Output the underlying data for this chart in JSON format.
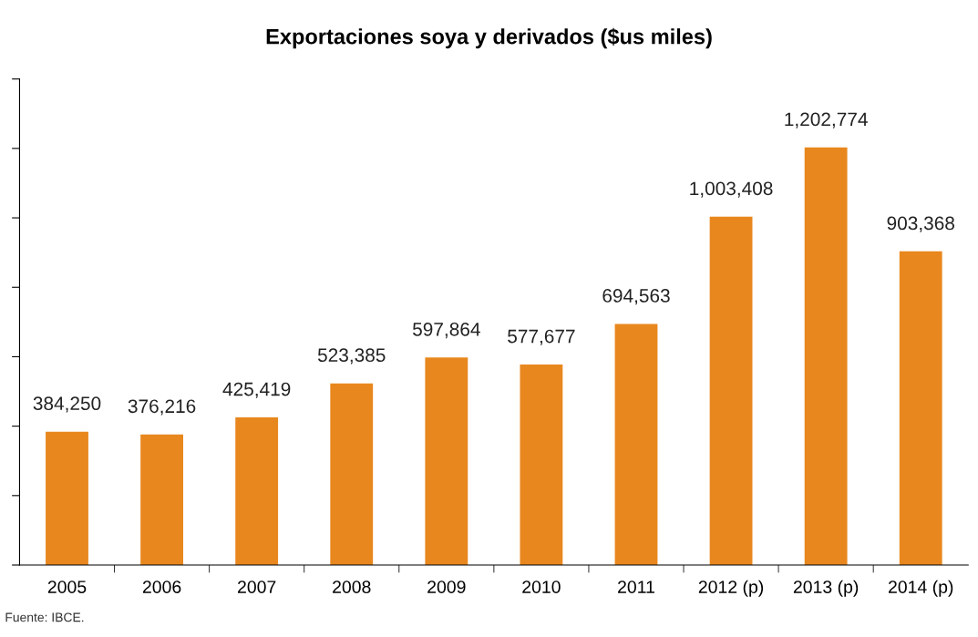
{
  "chart_data": {
    "type": "bar",
    "title": "Exportaciones soya y derivados ($us miles)",
    "categories": [
      "2005",
      "2006",
      "2007",
      "2008",
      "2009",
      "2010",
      "2011",
      "2012 (p)",
      "2013 (p)",
      "2014 (p)"
    ],
    "values": [
      384250,
      376216,
      425419,
      523385,
      597864,
      577677,
      694563,
      1003408,
      1202774,
      903368
    ],
    "value_labels": [
      "384,250",
      "376,216",
      "425,419",
      "523,385",
      "597,864",
      "577,677",
      "694,563",
      "1,003,408",
      "1,202,774",
      "903,368"
    ],
    "color": "#e8871e",
    "ylim": [
      0,
      1400000
    ],
    "yticks": [
      {
        "value": 0,
        "label": null
      },
      {
        "value": 200000,
        "label": null
      },
      {
        "value": 400000,
        "label": null
      },
      {
        "value": 600000,
        "label": null
      },
      {
        "value": 800000,
        "label": null
      },
      {
        "value": 1000000,
        "label": null
      },
      {
        "value": 1200000,
        "label": null
      },
      {
        "value": 1400000,
        "label": null
      }
    ],
    "tick_labels": "x",
    "grid": false,
    "annotations": [
      "Fuente: IBCE."
    ]
  }
}
